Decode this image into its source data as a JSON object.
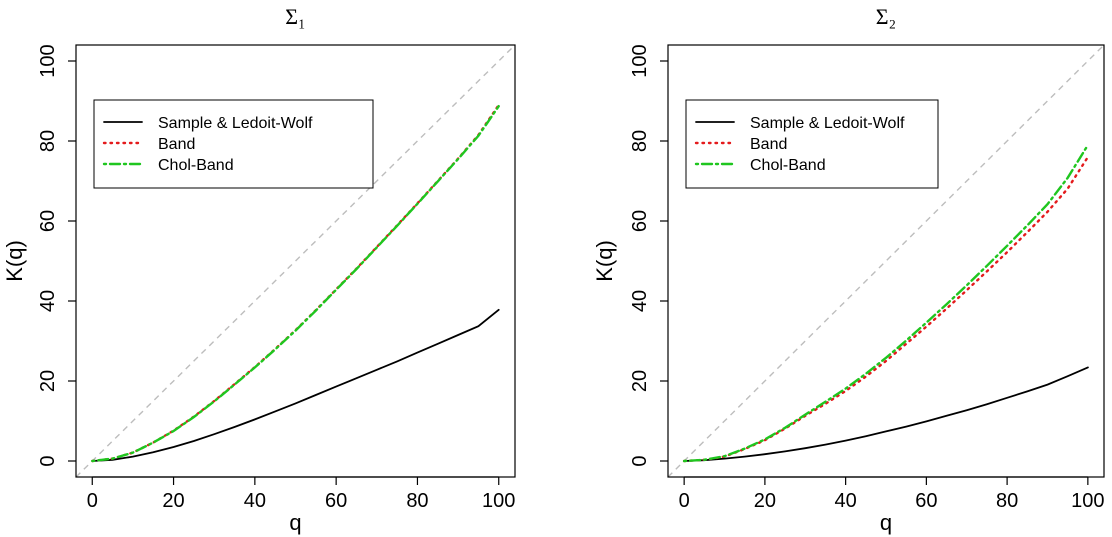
{
  "chart_data": [
    {
      "type": "line",
      "title": "Σ₁",
      "xlabel": "q",
      "ylabel": "K(q)",
      "xlim": [
        0,
        100
      ],
      "ylim": [
        0,
        100
      ],
      "xticks": [
        "0",
        "20",
        "40",
        "60",
        "80",
        "100"
      ],
      "yticks": [
        "0",
        "20",
        "40",
        "60",
        "80",
        "100"
      ],
      "reference_line": {
        "slope": 1,
        "style": "dashed",
        "color": "#bdbdbd"
      },
      "legend": {
        "position": "top-left"
      },
      "series": [
        {
          "name": "Sample & Ledoit-Wolf",
          "color": "#000000",
          "style": "solid",
          "x": [
            0,
            5,
            10,
            15,
            20,
            25,
            30,
            35,
            40,
            45,
            50,
            55,
            60,
            65,
            70,
            75,
            80,
            85,
            90,
            95,
            100
          ],
          "y": [
            0,
            0.3,
            1.1,
            2.2,
            3.5,
            5.0,
            6.7,
            8.5,
            10.4,
            12.4,
            14.4,
            16.5,
            18.6,
            20.7,
            22.8,
            24.9,
            27.1,
            29.3,
            31.5,
            33.7,
            37.8
          ]
        },
        {
          "name": "Band",
          "color": "#e41a1c",
          "style": "dotted",
          "x": [
            0,
            5,
            10,
            15,
            20,
            25,
            30,
            35,
            40,
            45,
            50,
            55,
            60,
            65,
            70,
            75,
            80,
            85,
            90,
            95,
            100
          ],
          "y": [
            0,
            0.6,
            2.1,
            4.6,
            7.6,
            11.1,
            15.0,
            19.2,
            23.5,
            28.0,
            32.7,
            37.7,
            42.9,
            48.1,
            53.5,
            58.9,
            64.4,
            70.0,
            75.6,
            81.5,
            89.0
          ]
        },
        {
          "name": "Chol-Band",
          "color": "#1fc61f",
          "style": "dotdash",
          "x": [
            0,
            5,
            10,
            15,
            20,
            25,
            30,
            35,
            40,
            45,
            50,
            55,
            60,
            65,
            70,
            75,
            80,
            85,
            90,
            95,
            100
          ],
          "y": [
            0,
            0.6,
            2.1,
            4.6,
            7.5,
            11.0,
            14.9,
            19.1,
            23.4,
            27.9,
            32.6,
            37.6,
            42.8,
            48.0,
            53.4,
            58.8,
            64.3,
            69.9,
            75.5,
            81.3,
            88.7
          ]
        }
      ]
    },
    {
      "type": "line",
      "title": "Σ₂",
      "xlabel": "q",
      "ylabel": "K(q)",
      "xlim": [
        0,
        100
      ],
      "ylim": [
        0,
        100
      ],
      "xticks": [
        "0",
        "20",
        "40",
        "60",
        "80",
        "100"
      ],
      "yticks": [
        "0",
        "20",
        "40",
        "60",
        "80",
        "100"
      ],
      "reference_line": {
        "slope": 1,
        "style": "dashed",
        "color": "#bdbdbd"
      },
      "legend": {
        "position": "top-left"
      },
      "series": [
        {
          "name": "Sample & Ledoit-Wolf",
          "color": "#000000",
          "style": "solid",
          "x": [
            0,
            5,
            10,
            15,
            20,
            25,
            30,
            35,
            40,
            45,
            50,
            55,
            60,
            65,
            70,
            75,
            80,
            85,
            90,
            95,
            100
          ],
          "y": [
            0,
            0.2,
            0.6,
            1.1,
            1.7,
            2.4,
            3.2,
            4.1,
            5.1,
            6.2,
            7.4,
            8.6,
            9.9,
            11.3,
            12.7,
            14.2,
            15.8,
            17.4,
            19.1,
            21.2,
            23.4
          ]
        },
        {
          "name": "Band",
          "color": "#e41a1c",
          "style": "dotted",
          "x": [
            0,
            5,
            10,
            15,
            20,
            25,
            30,
            35,
            40,
            45,
            50,
            55,
            60,
            65,
            70,
            75,
            80,
            85,
            90,
            95,
            100
          ],
          "y": [
            0,
            0.3,
            1.1,
            3.0,
            5.2,
            8.1,
            11.3,
            14.3,
            17.5,
            21.1,
            25.0,
            29.3,
            33.6,
            38.1,
            42.7,
            47.4,
            52.2,
            57.2,
            62.3,
            68.1,
            76.0
          ]
        },
        {
          "name": "Chol-Band",
          "color": "#1fc61f",
          "style": "dotdash",
          "x": [
            0,
            5,
            10,
            15,
            20,
            25,
            30,
            35,
            40,
            45,
            50,
            55,
            60,
            65,
            70,
            75,
            80,
            85,
            90,
            95,
            100
          ],
          "y": [
            0,
            0.3,
            1.2,
            3.1,
            5.4,
            8.3,
            11.6,
            14.8,
            18.1,
            21.8,
            25.8,
            30.1,
            34.6,
            39.2,
            43.9,
            48.8,
            53.8,
            58.9,
            64.2,
            70.8,
            79.0
          ]
        }
      ]
    }
  ]
}
